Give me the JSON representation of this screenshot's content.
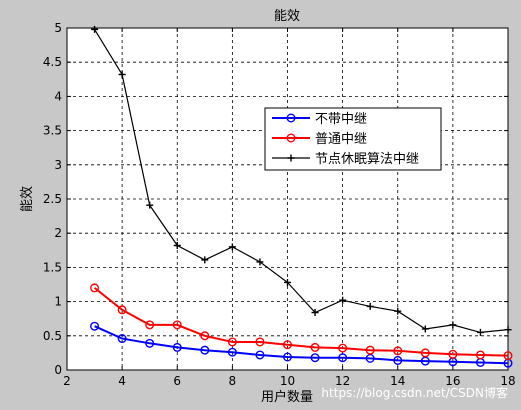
{
  "chart_data": {
    "type": "line",
    "title": "能效",
    "xlabel": "用户数量",
    "ylabel": "能效",
    "xlim": [
      2,
      18
    ],
    "ylim": [
      0,
      5
    ],
    "xticks": [
      2,
      4,
      6,
      8,
      10,
      12,
      14,
      16,
      18
    ],
    "yticks": [
      0,
      0.5,
      1,
      1.5,
      2,
      2.5,
      3,
      3.5,
      4,
      4.5,
      5
    ],
    "xtick_labels": [
      "2",
      "4",
      "6",
      "8",
      "10",
      "12",
      "14",
      "16",
      "18"
    ],
    "ytick_labels": [
      "0",
      "0.5",
      "1",
      "1.5",
      "2",
      "2.5",
      "3",
      "3.5",
      "4",
      "4.5",
      "5"
    ],
    "grid": true,
    "legend_position": "upper-right",
    "x": [
      3,
      4,
      5,
      6,
      7,
      8,
      9,
      10,
      11,
      12,
      13,
      14,
      15,
      16,
      17,
      18
    ],
    "series": [
      {
        "name": "不带中继",
        "color": "#0000ff",
        "marker": "circle",
        "values": [
          0.64,
          0.46,
          0.39,
          0.33,
          0.29,
          0.26,
          0.22,
          0.19,
          0.18,
          0.18,
          0.17,
          0.14,
          0.13,
          0.12,
          0.11,
          0.1
        ]
      },
      {
        "name": "普通中继",
        "color": "#ff0000",
        "marker": "circle",
        "values": [
          1.2,
          0.88,
          0.66,
          0.66,
          0.5,
          0.41,
          0.41,
          0.37,
          0.33,
          0.32,
          0.29,
          0.28,
          0.25,
          0.23,
          0.22,
          0.21
        ]
      },
      {
        "name": "节点休眠算法中继",
        "color": "#000000",
        "marker": "plus",
        "values": [
          4.98,
          4.32,
          2.41,
          1.82,
          1.61,
          1.8,
          1.58,
          1.28,
          0.84,
          1.02,
          0.93,
          0.86,
          0.6,
          0.66,
          0.55,
          0.59
        ]
      }
    ]
  },
  "watermark": "https://blog.csdn.net/CSDN博客"
}
